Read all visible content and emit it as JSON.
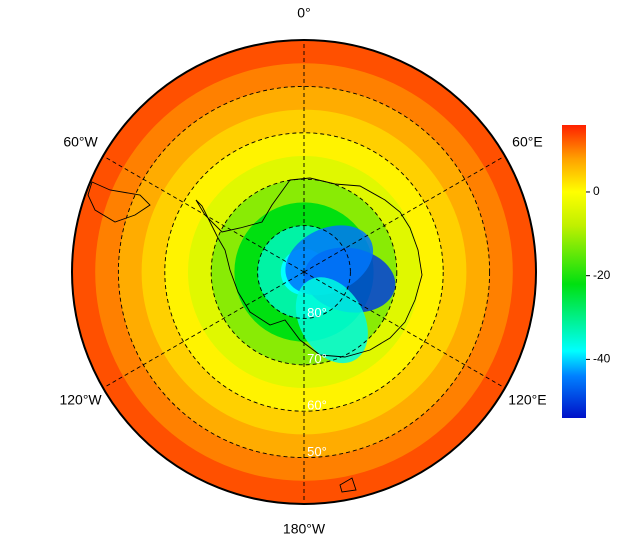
{
  "map": {
    "meridians": [
      {
        "lon": 0,
        "label": "0°"
      },
      {
        "lon": 60,
        "label": "60°E"
      },
      {
        "lon": 120,
        "label": "120°E"
      },
      {
        "lon": 180,
        "label": "180°W"
      },
      {
        "lon": -120,
        "label": "120°W"
      },
      {
        "lon": -60,
        "label": "60°W"
      }
    ],
    "parallels": [
      {
        "lat": 80,
        "label": "80°"
      },
      {
        "lat": 70,
        "label": "70°"
      },
      {
        "lat": 60,
        "label": "60°"
      },
      {
        "lat": 50,
        "label": "50°"
      }
    ],
    "boundary_lat": 40,
    "field": {
      "lat_edges": [
        40,
        45,
        50,
        55,
        60,
        65,
        70,
        75,
        80,
        85,
        90
      ],
      "values": [
        13,
        10,
        7,
        4,
        1,
        -4,
        -12,
        -22,
        -32,
        -38
      ]
    },
    "anomalies": [
      {
        "lon": 100,
        "lat": 80,
        "value": -50
      },
      {
        "lon": 65,
        "lat": 84,
        "value": -45
      },
      {
        "lon": 150,
        "lat": 78,
        "value": -36
      }
    ]
  },
  "colorbar": {
    "lim": [
      -54,
      16
    ],
    "ticks": [
      0,
      -20,
      -40
    ],
    "colormap": [
      {
        "value": -54,
        "color": "#0010c8"
      },
      {
        "value": -44,
        "color": "#0080ff"
      },
      {
        "value": -38,
        "color": "#00ffff"
      },
      {
        "value": -22,
        "color": "#00e010"
      },
      {
        "value": -8,
        "color": "#c0f000"
      },
      {
        "value": 0,
        "color": "#ffff00"
      },
      {
        "value": 8,
        "color": "#ffa000"
      },
      {
        "value": 16,
        "color": "#ff2000"
      }
    ]
  }
}
